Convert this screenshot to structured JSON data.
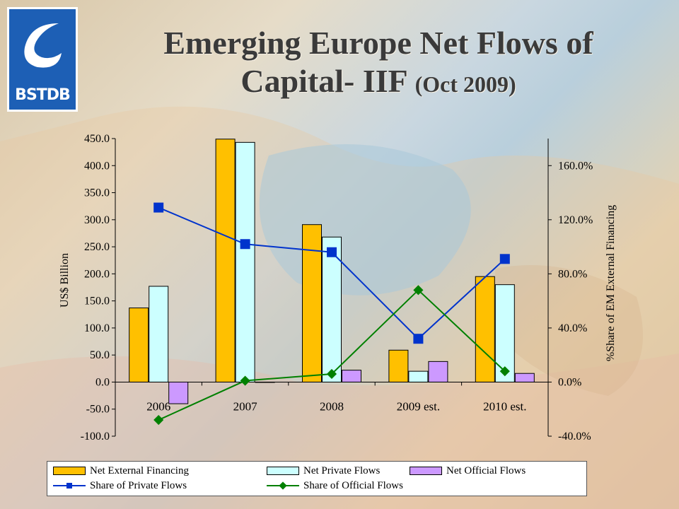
{
  "title": {
    "line1": "Emerging Europe Net Flows of",
    "line2": "Capital- IIF",
    "line2_sub": "(Oct 2009)"
  },
  "logo": {
    "text": "BSTDB",
    "color": "#1d5fb5",
    "icon": "wave-logo-icon"
  },
  "chart_data": {
    "type": "bar",
    "categories": [
      "2006",
      "2007",
      "2008",
      "2009 est.",
      "2010 est."
    ],
    "ylabel": "US$ Billion",
    "y2label": "%Share of EM External Financing",
    "ylim": [
      -100,
      450
    ],
    "y_ticks": [
      "450.0",
      "400.0",
      "350.0",
      "300.0",
      "250.0",
      "200.0",
      "150.0",
      "100.0",
      "50.0",
      "0.0",
      "-50.0",
      "-100.0"
    ],
    "y2lim": [
      -40,
      180
    ],
    "y2_ticks": [
      "160.0%",
      "120.0%",
      "80.0%",
      "40.0%",
      "0.0%",
      "-40.0%"
    ],
    "bar_series": [
      {
        "name": "Net External Financing",
        "color": "#ffc000",
        "values": [
          137,
          449,
          291,
          59,
          195
        ]
      },
      {
        "name": "Net Private Flows",
        "color": "#ccffff",
        "values": [
          177,
          443,
          268,
          20,
          180
        ]
      },
      {
        "name": "Net Official Flows",
        "color": "#cc99ff",
        "values": [
          -40,
          0,
          22,
          38,
          16
        ]
      }
    ],
    "line_series": [
      {
        "name": "Share of Private Flows",
        "color": "#0033cc",
        "marker": "square",
        "values": [
          129,
          102,
          96,
          32,
          91
        ]
      },
      {
        "name": "Share of Official Flows",
        "color": "#008000",
        "marker": "diamond",
        "values": [
          -28,
          1,
          6,
          68,
          8
        ]
      }
    ],
    "legend_position": "bottom"
  }
}
